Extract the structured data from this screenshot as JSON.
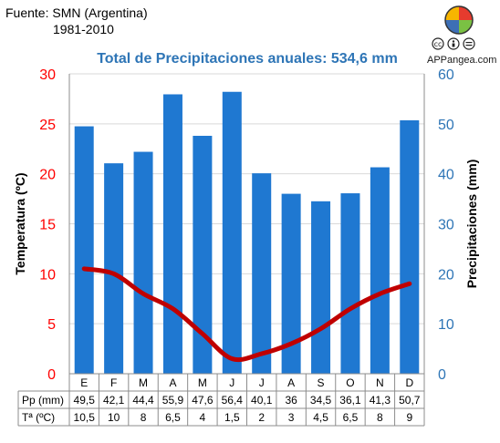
{
  "header": {
    "source_line": "Fuente: SMN (Argentina)",
    "period": "1981-2010",
    "brand": "APPangea.com",
    "license_icons": [
      "cc-icon",
      "by-icon",
      "nd-icon"
    ]
  },
  "chart_data": {
    "type": "bar",
    "title": "Total de Precipitaciones anuales: 534,6 mm",
    "categories": [
      "E",
      "F",
      "M",
      "A",
      "M",
      "J",
      "J",
      "A",
      "S",
      "O",
      "N",
      "D"
    ],
    "series": [
      {
        "name": "Pp (mm)",
        "type": "bar",
        "axis": "right",
        "color": "#1f78d1",
        "values": [
          49.5,
          42.1,
          44.4,
          55.9,
          47.6,
          56.4,
          40.1,
          36,
          34.5,
          36.1,
          41.3,
          50.7
        ],
        "labels": [
          "49,5",
          "42,1",
          "44,4",
          "55,9",
          "47,6",
          "56,4",
          "40,1",
          "36",
          "34,5",
          "36,1",
          "41,3",
          "50,7"
        ]
      },
      {
        "name": "Tª (ºC)",
        "type": "line",
        "axis": "left",
        "color": "#c00000",
        "values": [
          10.5,
          10,
          8,
          6.5,
          4,
          1.5,
          2,
          3,
          4.5,
          6.5,
          8,
          9
        ],
        "labels": [
          "10,5",
          "10",
          "8",
          "6,5",
          "4",
          "1,5",
          "2",
          "3",
          "4,5",
          "6,5",
          "8",
          "9"
        ]
      }
    ],
    "y_left": {
      "label": "Temperatura (ºC)",
      "range": [
        0,
        30
      ],
      "ticks": [
        "0",
        "5",
        "10",
        "15",
        "20",
        "25",
        "30"
      ],
      "color": "#ff0000"
    },
    "y_right": {
      "label": "Precipitaciones (mm)",
      "range": [
        0,
        60
      ],
      "ticks": [
        "0",
        "10",
        "20",
        "30",
        "40",
        "50",
        "60"
      ],
      "color": "#2e75b6"
    },
    "grid": true,
    "table_row_labels": [
      "Pp (mm)",
      "Tª (ºC)"
    ]
  },
  "colors": {
    "title": "#2e75b6",
    "bar": "#1f78d1",
    "temp_line": "#c00000",
    "left_axis": "#ff0000",
    "right_axis": "#2e75b6",
    "grid": "#d9d9d9"
  }
}
